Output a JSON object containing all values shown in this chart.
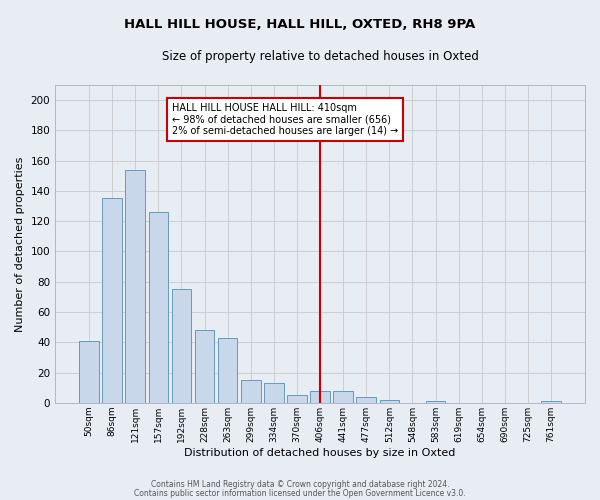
{
  "title": "HALL HILL HOUSE, HALL HILL, OXTED, RH8 9PA",
  "subtitle": "Size of property relative to detached houses in Oxted",
  "xlabel": "Distribution of detached houses by size in Oxted",
  "ylabel": "Number of detached properties",
  "categories": [
    "50sqm",
    "86sqm",
    "121sqm",
    "157sqm",
    "192sqm",
    "228sqm",
    "263sqm",
    "299sqm",
    "334sqm",
    "370sqm",
    "406sqm",
    "441sqm",
    "477sqm",
    "512sqm",
    "548sqm",
    "583sqm",
    "619sqm",
    "654sqm",
    "690sqm",
    "725sqm",
    "761sqm"
  ],
  "values": [
    41,
    135,
    154,
    126,
    75,
    48,
    43,
    15,
    13,
    5,
    8,
    8,
    4,
    2,
    0,
    1,
    0,
    0,
    0,
    0,
    1
  ],
  "bar_color": "#c8d8ea",
  "bar_edge_color": "#6699bb",
  "background_color": "#e8edf4",
  "grid_color": "#c8c8cc",
  "vline_x_index": 10,
  "vline_color": "#cc0000",
  "annotation_text": "HALL HILL HOUSE HALL HILL: 410sqm\n← 98% of detached houses are smaller (656)\n2% of semi-detached houses are larger (14) →",
  "annotation_box_color": "#ffffff",
  "annotation_box_edge": "#cc0000",
  "ylim": [
    0,
    210
  ],
  "yticks": [
    0,
    20,
    40,
    60,
    80,
    100,
    120,
    140,
    160,
    180,
    200
  ],
  "footer1": "Contains HM Land Registry data © Crown copyright and database right 2024.",
  "footer2": "Contains public sector information licensed under the Open Government Licence v3.0."
}
